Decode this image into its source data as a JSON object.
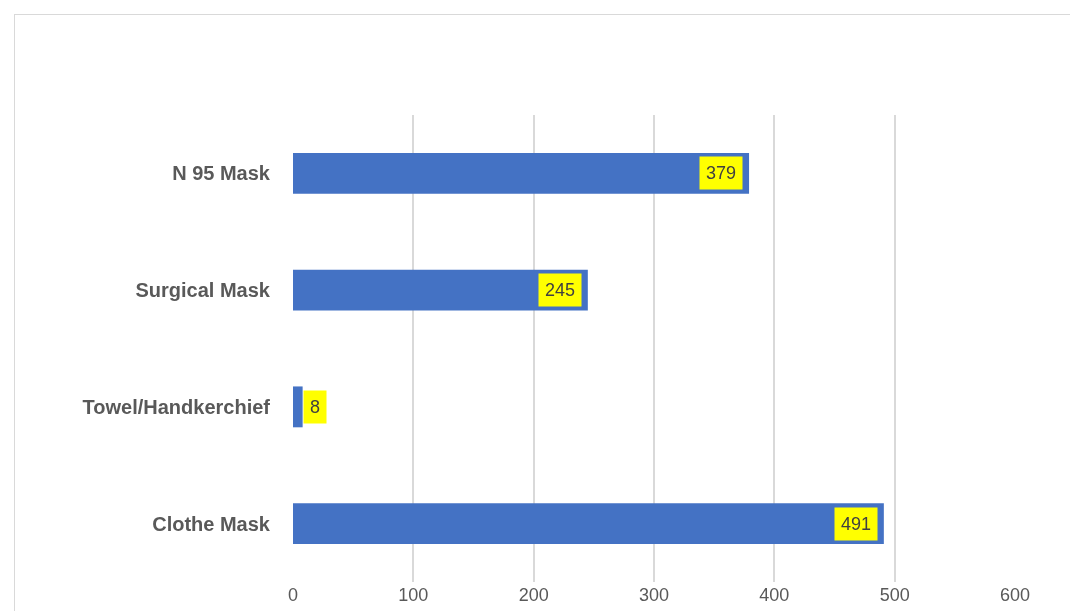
{
  "chart_data": {
    "type": "bar",
    "orientation": "horizontal",
    "categories": [
      "N 95 Mask",
      "Surgical Mask",
      "Towel/Handkerchief",
      "Clothe Mask"
    ],
    "values": [
      379,
      245,
      8,
      491
    ],
    "color": "#4472c4",
    "xlim": [
      0,
      600
    ],
    "xticks": [
      0,
      100,
      200,
      300,
      400,
      500,
      600
    ],
    "grid": "x",
    "data_labels": true
  }
}
